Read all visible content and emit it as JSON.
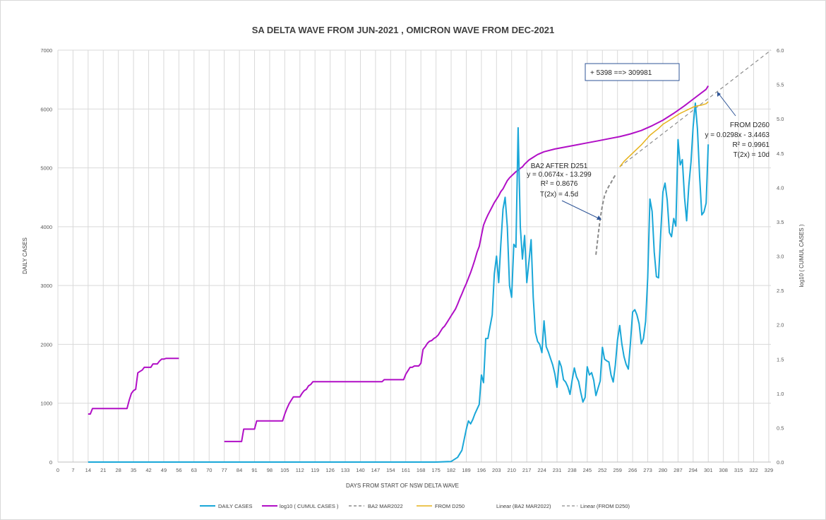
{
  "chart_data": {
    "type": "line",
    "title": "SA DELTA WAVE FROM JUN-2021 , OMICRON WAVE FROM DEC-2021",
    "xlabel": "DAYS FROM START OF NSW DELTA WAVE",
    "ylabel": "DAILY CASES",
    "y2label": "log10 ( CUMUL CASES )",
    "xlim": [
      0,
      330
    ],
    "ylim": [
      0,
      7000
    ],
    "y2lim": [
      0,
      6
    ],
    "grid": true,
    "legend_position": "bottom",
    "x_ticks": [
      0,
      7,
      14,
      21,
      28,
      35,
      42,
      49,
      56,
      63,
      70,
      77,
      84,
      91,
      98,
      105,
      112,
      119,
      126,
      133,
      140,
      147,
      154,
      161,
      168,
      175,
      182,
      189,
      196,
      203,
      210,
      217,
      224,
      231,
      238,
      245,
      252,
      259,
      266,
      273,
      280,
      287,
      294,
      301,
      308,
      315,
      322,
      329
    ],
    "y_ticks": [
      0,
      1000,
      2000,
      3000,
      4000,
      5000,
      6000,
      7000
    ],
    "y2_ticks": [
      "0.0",
      "0.5",
      "1.0",
      "1.5",
      "2.0",
      "2.5",
      "3.0",
      "3.5",
      "4.0",
      "4.5",
      "5.0",
      "5.5",
      "6.0"
    ],
    "series": [
      {
        "name": "DAILY CASES",
        "axis": "left",
        "color": "#1aa7d8",
        "x": [
          14,
          175,
          182,
          185,
          187,
          189,
          190,
          191,
          192,
          193,
          195,
          196,
          197,
          198,
          199,
          200,
          201,
          202,
          203,
          204,
          205,
          206,
          207,
          208,
          209,
          210,
          211,
          212,
          213,
          214,
          215,
          216,
          217,
          218,
          219,
          220,
          221,
          222,
          223,
          224,
          225,
          226,
          227,
          228,
          229,
          230,
          231,
          232,
          233,
          234,
          235,
          236,
          237,
          238,
          239,
          240,
          241,
          242,
          243,
          244,
          245,
          246,
          247,
          248,
          249,
          250,
          251,
          252,
          253,
          254,
          255,
          256,
          257,
          258,
          259,
          260,
          261,
          262,
          263,
          264,
          265,
          266,
          267,
          268,
          269,
          270,
          271,
          272,
          273,
          274,
          275,
          276,
          277,
          278,
          279,
          280,
          281,
          282,
          283,
          284,
          285,
          286,
          287,
          288,
          289,
          290,
          291,
          292,
          293,
          294,
          295,
          296,
          297,
          298,
          299,
          300,
          301
        ],
        "y": [
          0,
          0,
          10,
          80,
          200,
          560,
          700,
          650,
          720,
          820,
          980,
          1480,
          1350,
          2100,
          2100,
          2300,
          2500,
          3200,
          3500,
          3050,
          3700,
          4300,
          4500,
          4000,
          3000,
          2800,
          3700,
          3650,
          5680,
          4000,
          3450,
          3850,
          3050,
          3400,
          3780,
          2800,
          2200,
          2050,
          2000,
          1860,
          2400,
          1960,
          1870,
          1760,
          1650,
          1500,
          1270,
          1720,
          1620,
          1400,
          1360,
          1280,
          1150,
          1390,
          1600,
          1450,
          1370,
          1180,
          1020,
          1100,
          1620,
          1480,
          1520,
          1390,
          1130,
          1260,
          1380,
          1950,
          1750,
          1720,
          1700,
          1480,
          1360,
          1650,
          2080,
          2320,
          2010,
          1790,
          1660,
          1580,
          2040,
          2550,
          2590,
          2500,
          2350,
          2010,
          2100,
          2390,
          3140,
          4470,
          4260,
          3570,
          3150,
          3130,
          3890,
          4590,
          4740,
          4450,
          3900,
          3830,
          4140,
          4010,
          5480,
          5050,
          5140,
          4500,
          4100,
          4700,
          5100,
          5700,
          6100,
          5660,
          4850,
          4200,
          4250,
          4400,
          5400
        ]
      },
      {
        "name": "log10 ( CUMUL CASES )",
        "axis": "right",
        "color": "#b10fc6",
        "segments": [
          {
            "x": [
              14,
              15,
              16,
              17,
              18,
              19,
              20,
              21,
              22,
              23,
              24,
              25,
              26,
              27,
              28,
              29,
              30,
              31,
              32,
              33,
              34,
              35,
              36,
              37,
              38,
              39,
              40,
              41,
              42,
              43,
              44,
              45,
              46,
              47,
              48,
              49,
              50,
              51,
              52,
              53,
              54,
              55,
              56
            ],
            "y": [
              0.7,
              0.7,
              0.78,
              0.78,
              0.78,
              0.78,
              0.78,
              0.78,
              0.78,
              0.78,
              0.78,
              0.78,
              0.78,
              0.78,
              0.78,
              0.78,
              0.78,
              0.78,
              0.78,
              0.9,
              1.0,
              1.04,
              1.06,
              1.3,
              1.32,
              1.34,
              1.38,
              1.38,
              1.38,
              1.38,
              1.43,
              1.43,
              1.43,
              1.47,
              1.5,
              1.5,
              1.51,
              1.51,
              1.51,
              1.51,
              1.51,
              1.51,
              1.51
            ]
          },
          {
            "x": [
              67,
              69,
              70
            ],
            "y": [
              0,
              0,
              0
            ]
          },
          {
            "x": [
              77,
              80,
              83,
              85,
              86,
              90,
              91,
              92,
              95,
              99,
              102,
              104,
              105,
              106,
              107,
              108,
              109,
              110,
              111,
              112,
              113,
              114,
              115,
              116,
              117,
              118,
              119,
              120,
              125,
              135,
              145,
              150,
              151,
              155,
              158,
              160,
              161,
              162,
              163,
              164,
              165,
              166,
              167,
              168,
              169,
              170,
              171,
              172,
              173,
              174,
              175,
              176,
              177,
              178,
              179,
              180,
              181,
              182,
              183,
              184,
              185,
              186,
              187,
              188,
              189,
              190,
              191,
              192,
              193,
              194,
              195,
              196,
              197,
              198,
              199,
              200,
              201,
              202,
              203,
              204,
              205,
              206,
              207,
              208,
              209,
              210,
              211,
              212,
              213,
              214,
              215,
              216,
              217,
              218,
              219,
              220,
              222,
              225,
              230,
              235,
              240,
              245,
              250,
              255,
              260,
              265,
              270,
              275,
              280,
              285,
              290,
              295,
              300,
              301
            ],
            "y": [
              0.3,
              0.3,
              0.3,
              0.3,
              0.48,
              0.48,
              0.48,
              0.6,
              0.6,
              0.6,
              0.6,
              0.6,
              0.7,
              0.78,
              0.85,
              0.9,
              0.95,
              0.95,
              0.95,
              0.95,
              1.0,
              1.04,
              1.06,
              1.11,
              1.13,
              1.17,
              1.17,
              1.17,
              1.17,
              1.17,
              1.17,
              1.17,
              1.2,
              1.2,
              1.2,
              1.2,
              1.28,
              1.33,
              1.38,
              1.38,
              1.4,
              1.4,
              1.4,
              1.44,
              1.64,
              1.68,
              1.73,
              1.76,
              1.77,
              1.8,
              1.82,
              1.85,
              1.9,
              1.95,
              1.98,
              2.03,
              2.08,
              2.13,
              2.18,
              2.23,
              2.3,
              2.38,
              2.45,
              2.53,
              2.6,
              2.68,
              2.76,
              2.85,
              2.95,
              3.06,
              3.14,
              3.3,
              3.45,
              3.53,
              3.6,
              3.66,
              3.72,
              3.78,
              3.83,
              3.88,
              3.94,
              3.98,
              4.04,
              4.1,
              4.14,
              4.17,
              4.2,
              4.23,
              4.25,
              4.28,
              4.3,
              4.34,
              4.37,
              4.4,
              4.42,
              4.44,
              4.48,
              4.52,
              4.56,
              4.59,
              4.62,
              4.65,
              4.68,
              4.71,
              4.74,
              4.78,
              4.83,
              4.9,
              4.98,
              5.08,
              5.19,
              5.31,
              5.43,
              5.48
            ]
          }
        ]
      },
      {
        "name": "BA2 MAR2022",
        "axis": "right",
        "color": "#8c8c8c",
        "dash": true,
        "x": [
          249,
          250,
          251,
          252,
          253,
          254,
          255,
          256,
          257,
          258
        ],
        "y": [
          3.02,
          3.3,
          3.55,
          3.74,
          3.88,
          3.96,
          4.02,
          4.07,
          4.13,
          4.18
        ]
      },
      {
        "name": "FROM D250",
        "axis": "right",
        "color": "#e6b21b",
        "x": [
          260,
          262,
          264,
          266,
          268,
          270,
          272,
          274,
          276,
          278,
          280,
          282,
          284,
          286,
          288,
          290,
          292,
          294,
          296,
          298,
          300,
          301
        ],
        "y": [
          4.3,
          4.38,
          4.44,
          4.5,
          4.56,
          4.62,
          4.69,
          4.76,
          4.81,
          4.86,
          4.92,
          4.96,
          5.0,
          5.04,
          5.08,
          5.11,
          5.14,
          5.17,
          5.19,
          5.2,
          5.22,
          5.25
        ]
      },
      {
        "name": "Linear (BA2 MAR2022)",
        "axis": "right",
        "color": "#8c8c8c",
        "dash": true,
        "x": [],
        "y": []
      },
      {
        "name": "Linear (FROM D250)",
        "axis": "right",
        "color": "#8c8c8c",
        "dash": true,
        "x": [
          260,
          330
        ],
        "y": [
          4.3,
          6.0
        ]
      }
    ],
    "annotations": {
      "box": "+ 5398    ==>  309981",
      "from_d260": [
        "FROM D260",
        "y = 0.0298x - 3.4463",
        "R² = 0.9961",
        "T(2x) = 10d"
      ],
      "ba2": [
        "BA2 AFTER D251",
        "y = 0.0674x - 13.299",
        "R² = 0.8676",
        "T(2x) = 4.5d"
      ]
    }
  }
}
